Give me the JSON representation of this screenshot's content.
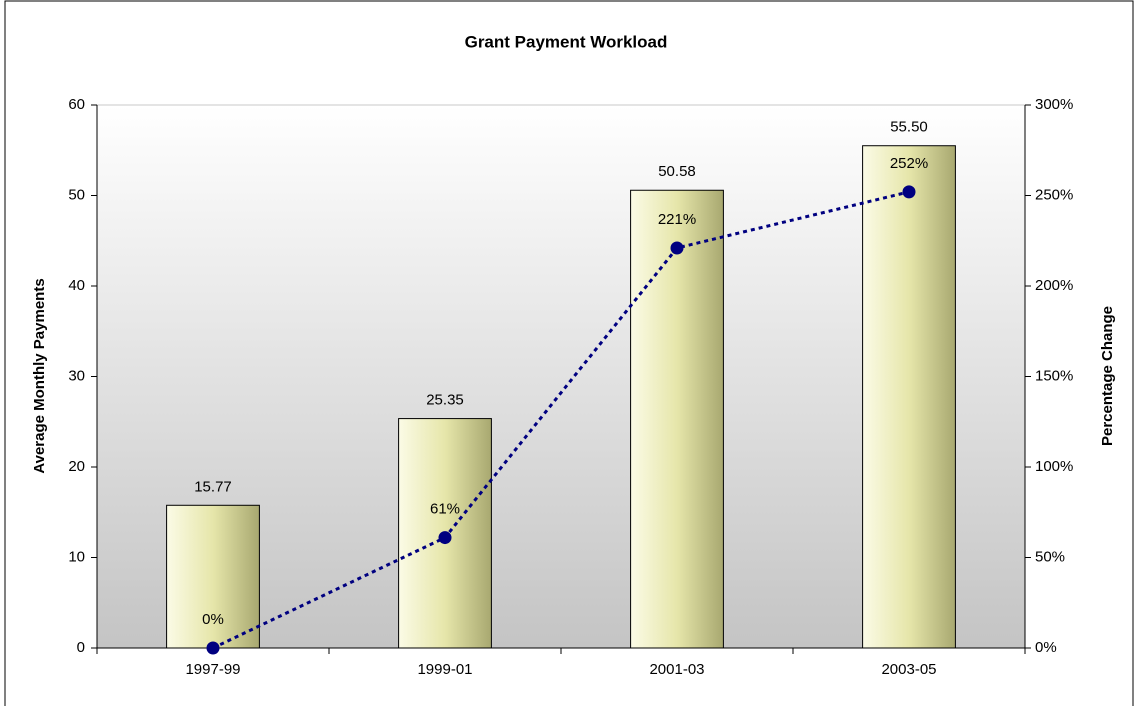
{
  "chart_data": {
    "type": "bar",
    "title": "Grant Payment Workload",
    "ylabel": "Average Monthly Payments",
    "y2label": "Percentage Change",
    "categories": [
      "1997-99",
      "1999-01",
      "2001-03",
      "2003-05"
    ],
    "series": [
      {
        "type": "bar",
        "color": "#e6e6aa",
        "values": [
          15.77,
          25.35,
          50.58,
          55.5
        ],
        "value_labels": [
          "15.77",
          "25.35",
          "50.58",
          "55.50"
        ]
      },
      {
        "type": "line",
        "axis": "y2",
        "color": "#000080",
        "values": [
          0,
          61,
          221,
          252
        ],
        "value_labels": [
          "0%",
          "61%",
          "221%",
          "252%"
        ]
      }
    ],
    "ylim": [
      0,
      60
    ],
    "yticks": [
      0,
      10,
      20,
      30,
      40,
      50,
      60
    ],
    "y2lim": [
      0,
      300
    ],
    "y2ticks": [
      {
        "value": 0,
        "label": "0%"
      },
      {
        "value": 50,
        "label": "50%"
      },
      {
        "value": 100,
        "label": "100%"
      },
      {
        "value": 150,
        "label": "150%"
      },
      {
        "value": 200,
        "label": "200%"
      },
      {
        "value": 250,
        "label": "250%"
      },
      {
        "value": 300,
        "label": "300%"
      }
    ]
  }
}
